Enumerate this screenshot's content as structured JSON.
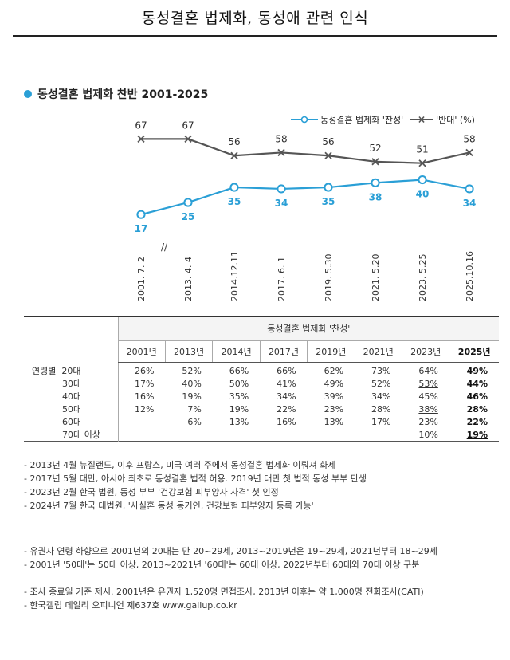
{
  "page_title": "동성결혼 법제화, 동성애 관련 인식",
  "section_title": "동성결혼 법제화 찬반 2001-2025",
  "colors": {
    "favor": "#2a9fd6",
    "oppose": "#555555",
    "accent_dot": "#2a9fd6"
  },
  "chart_data": {
    "type": "line",
    "title": "동성결혼 법제화 찬반 2001-2025",
    "categories": [
      "2001. 7. 2",
      "2013. 4. 4",
      "2014.12.11",
      "2017. 6. 1",
      "2019. 5.30",
      "2021. 5.20",
      "2023. 5.25",
      "2025.10.16"
    ],
    "series": [
      {
        "name": "동성결혼 법제화 '찬성'",
        "marker": "circle",
        "values": [
          17,
          25,
          35,
          34,
          35,
          38,
          40,
          34
        ]
      },
      {
        "name": "'반대' (%)",
        "marker": "x",
        "values": [
          67,
          67,
          56,
          58,
          56,
          52,
          51,
          58
        ]
      }
    ],
    "axis_break_label": "//",
    "ylim": [
      0,
      80
    ],
    "grid": false,
    "legend_position": "top-right"
  },
  "legend": {
    "favor_label": "동성결혼 법제화 '찬성'",
    "oppose_label": "'반대' (%)"
  },
  "table": {
    "super_header": "동성결혼 법제화 '찬성'",
    "group_label": "연령별",
    "years": [
      "2001년",
      "2013년",
      "2014년",
      "2017년",
      "2019년",
      "2021년",
      "2023년",
      "2025년"
    ],
    "rows": [
      {
        "label": "20대",
        "values": [
          "26%",
          "52%",
          "66%",
          "66%",
          "62%",
          "73%",
          "64%",
          "49%"
        ]
      },
      {
        "label": "30대",
        "values": [
          "17%",
          "40%",
          "50%",
          "41%",
          "49%",
          "52%",
          "53%",
          "44%"
        ]
      },
      {
        "label": "40대",
        "values": [
          "16%",
          "19%",
          "35%",
          "34%",
          "39%",
          "34%",
          "45%",
          "46%"
        ]
      },
      {
        "label": "50대",
        "values": [
          "12%",
          "7%",
          "19%",
          "22%",
          "23%",
          "28%",
          "38%",
          "28%"
        ]
      },
      {
        "label": "60대",
        "values": [
          "",
          "6%",
          "13%",
          "16%",
          "13%",
          "17%",
          "23%",
          "22%"
        ]
      },
      {
        "label": "70대 이상",
        "values": [
          "",
          "",
          "",
          "",
          "",
          "",
          "10%",
          "19%"
        ]
      }
    ]
  },
  "notes_events": [
    "- 2013년 4월 뉴질랜드, 이후 프랑스, 미국 여러 주에서 동성결혼 법제화 이뤄져 화제",
    "- 2017년 5월 대만, 아시아 최초로 동성결혼 법적 허용. 2019년 대만 첫 법적 동성 부부 탄생",
    "- 2023년 2월 한국 법원, 동성 부부 '건강보험 피부양자 자격' 첫 인정",
    "- 2024년 7월 한국 대법원, '사실혼 동성 동거인, 건강보험 피부양자 등록 가능'"
  ],
  "notes_method": [
    "- 유권자 연령 하향으로 2001년의 20대는 만 20~29세, 2013~2019년은 19~29세, 2021년부터 18~29세",
    "- 2001년 '50대'는 50대 이상, 2013~2021년 '60대'는 60대 이상, 2022년부터 60대와 70대 이상 구분"
  ],
  "notes_source": [
    "- 조사 종료일 기준 제시. 2001년은 유권자 1,520명 면접조사, 2013년 이후는 약 1,000명 전화조사(CATI)",
    "- 한국갤럽 데일리 오피니언 제637호 www.gallup.co.kr"
  ]
}
